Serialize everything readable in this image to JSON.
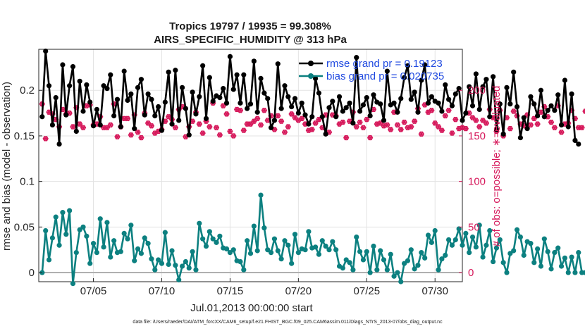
{
  "chart_data": {
    "type": "line",
    "title": "Tropics 19797 / 19935 = 99.308%",
    "subtitle": "AIRS_SPECIFIC_HUMIDITY @ 313 hPa",
    "xlabel": "Jul.01,2013 00:00:00 start",
    "ylabel": "rmse and bias (model - observation)",
    "ylabel_right": "# of obs: o=possible; ∗=evaluated",
    "footer": "data file: /Users/raeder/DAI/ATM_forcXX/CAM6_setup/f.e21.FHIST_BGC.f09_025.CAM6assim.011/Diags_NTrS_2013-07/obs_diag_output.nc",
    "x_range_days": [
      1.0,
      32.0
    ],
    "ylim": [
      -0.01,
      0.245
    ],
    "ylim_right": [
      -10,
      245
    ],
    "x_ticks": [
      {
        "day": 5,
        "label": "07/05"
      },
      {
        "day": 10,
        "label": "07/10"
      },
      {
        "day": 15,
        "label": "07/15"
      },
      {
        "day": 20,
        "label": "07/20"
      },
      {
        "day": 25,
        "label": "07/25"
      },
      {
        "day": 30,
        "label": "07/30"
      }
    ],
    "y_ticks": [
      {
        "value": 0,
        "label": "0"
      },
      {
        "value": 0.05,
        "label": "0.05"
      },
      {
        "value": 0.1,
        "label": "0.1"
      },
      {
        "value": 0.15,
        "label": "0.15"
      },
      {
        "value": 0.2,
        "label": "0.2"
      }
    ],
    "y_ticks_right": [
      {
        "value": 0,
        "label": "0"
      },
      {
        "value": 50,
        "label": "50"
      },
      {
        "value": 100,
        "label": "100"
      },
      {
        "value": 150,
        "label": "150"
      },
      {
        "value": 200,
        "label": "200"
      }
    ],
    "legend": [
      {
        "name": "rmse grand pr = 0.19123",
        "color": "#000000"
      },
      {
        "name": "bias grand pr = 0.020735",
        "color": "#008080"
      }
    ],
    "grid": true,
    "colors": {
      "rmse": "#000000",
      "bias": "#0c8080",
      "counts": "#d6195b",
      "zero_line": "#b0b0b0"
    },
    "series": [
      {
        "name": "rmse",
        "axis": "left",
        "x_start": 1.25,
        "x_step": 0.25,
        "values": [
          0.171,
          0.243,
          0.205,
          0.162,
          0.192,
          0.141,
          0.228,
          0.173,
          0.205,
          0.226,
          0.155,
          0.21,
          0.177,
          0.206,
          0.187,
          0.161,
          0.179,
          0.162,
          0.205,
          0.202,
          0.217,
          0.172,
          0.19,
          0.16,
          0.221,
          0.189,
          0.196,
          0.158,
          0.203,
          0.212,
          0.173,
          0.196,
          0.19,
          0.172,
          0.182,
          0.156,
          0.187,
          0.22,
          0.163,
          0.222,
          0.167,
          0.203,
          0.18,
          0.151,
          0.198,
          0.174,
          0.193,
          0.227,
          0.169,
          0.214,
          0.188,
          0.194,
          0.192,
          0.202,
          0.186,
          0.237,
          0.201,
          0.217,
          0.186,
          0.217,
          0.18,
          0.185,
          0.232,
          0.176,
          0.213,
          0.197,
          0.191,
          0.159,
          0.167,
          0.229,
          0.18,
          0.205,
          0.193,
          0.182,
          0.191,
          0.175,
          0.186,
          0.173,
          0.163,
          0.171,
          0.213,
          0.197,
          0.171,
          0.152,
          0.181,
          0.188,
          0.171,
          0.193,
          0.177,
          0.181,
          0.186,
          0.164,
          0.236,
          0.177,
          0.184,
          0.192,
          0.172,
          0.195,
          0.187,
          0.185,
          0.167,
          0.221,
          0.184,
          0.186,
          0.176,
          0.191,
          0.214,
          0.227,
          0.19,
          0.198,
          0.176,
          0.211,
          0.228,
          0.186,
          0.193,
          0.188,
          0.186,
          0.177,
          0.206,
          0.19,
          0.183,
          0.196,
          0.202,
          0.167,
          0.175,
          0.204,
          0.183,
          0.218,
          0.179,
          0.204,
          0.212,
          0.171,
          0.215,
          0.157,
          0.185,
          0.152,
          0.203,
          0.185,
          0.22,
          0.182,
          0.148,
          0.17,
          0.158,
          0.193,
          0.185,
          0.172,
          0.2,
          0.171,
          0.178,
          0.183,
          0.178,
          0.195,
          0.162,
          0.211,
          0.16,
          0.196,
          0.145,
          0.141
        ]
      },
      {
        "name": "bias",
        "axis": "left",
        "x_start": 1.25,
        "x_step": 0.25,
        "values": [
          0.0,
          0.046,
          0.014,
          0.038,
          0.061,
          0.03,
          0.066,
          0.042,
          0.068,
          -0.012,
          0.022,
          0.047,
          0.05,
          0.04,
          0.01,
          0.032,
          0.022,
          0.059,
          0.028,
          0.055,
          0.017,
          0.035,
          0.022,
          0.023,
          0.043,
          0.037,
          0.052,
          0.013,
          0.026,
          0.021,
          0.038,
          0.032,
          0.015,
          0.003,
          0.014,
          0.01,
          0.044,
          0.009,
          0.024,
          0.008,
          -0.008,
          0.007,
          0.012,
          0.005,
          0.023,
          0.003,
          0.054,
          0.037,
          0.029,
          0.045,
          0.037,
          0.033,
          0.04,
          0.027,
          0.026,
          0.022,
          0.025,
          0.013,
          0.012,
          0.003,
          0.035,
          0.021,
          0.051,
          0.024,
          0.085,
          0.049,
          0.025,
          0.022,
          0.037,
          0.024,
          0.015,
          0.035,
          0.03,
          0.01,
          0.042,
          0.022,
          0.026,
          0.025,
          0.045,
          0.027,
          0.028,
          0.02,
          0.035,
          0.029,
          0.025,
          0.034,
          0.025,
          0.007,
          0.005,
          0.014,
          0.011,
          0.003,
          0.039,
          0.023,
          0.014,
          0.023,
          0.0,
          0.029,
          0.003,
          0.024,
          0.014,
          0.003,
          0.02,
          -0.004,
          0.0,
          -0.01,
          0.01,
          0.013,
          0.025,
          0.004,
          0.008,
          0.022,
          0.016,
          0.041,
          0.033,
          0.046,
          0.003,
          0.015,
          0.019,
          0.036,
          0.03,
          0.036,
          0.048,
          0.03,
          0.043,
          0.022,
          0.039,
          0.028,
          0.052,
          0.017,
          0.03,
          0.046,
          0.012,
          0.027,
          0.036,
          0.011,
          0.0,
          0.021,
          0.024,
          0.047,
          0.039,
          0.019,
          0.034,
          0.032,
          0.011,
          0.026,
          0.007,
          0.037,
          0.023,
          0.004,
          0.022,
          0.027,
          0.007,
          0.016,
          0.0,
          0.017,
          0.0,
          0.022,
          0.0,
          0.0
        ]
      },
      {
        "name": "obs possible (o)",
        "axis": "right",
        "x_start": 1.25,
        "x_step": 0.25,
        "values": [
          185,
          147,
          176,
          174,
          168,
          160,
          179,
          174,
          175,
          160,
          181,
          163,
          159,
          183,
          184,
          162,
          163,
          171,
          159,
          159,
          162,
          185,
          149,
          160,
          169,
          169,
          151,
          173,
          154,
          148,
          175,
          164,
          161,
          153,
          155,
          157,
          166,
          171,
          168,
          159,
          179,
          182,
          149,
          160,
          166,
          176,
          163,
          153,
          166,
          160,
          186,
          159,
          151,
          183,
          174,
          155,
          150,
          179,
          178,
          156,
          163,
          163,
          166,
          169,
          162,
          178,
          167,
          172,
          157,
          172,
          166,
          154,
          160,
          174,
          170,
          167,
          169,
          163,
          156,
          157,
          164,
          168,
          159,
          173,
          154,
          173,
          172,
          163,
          165,
          148,
          166,
          176,
          160,
          165,
          159,
          168,
          148,
          179,
          163,
          164,
          161,
          162,
          157,
          176,
          162,
          157,
          165,
          159,
          160,
          166,
          180,
          152,
          184,
          176,
          178,
          164,
          160,
          156,
          172,
          178,
          153,
          168,
          158,
          159,
          158,
          175,
          170,
          167,
          160,
          167,
          164,
          179,
          170,
          155,
          178,
          150,
          170,
          158,
          177,
          172,
          163,
          161,
          173,
          162,
          169,
          163,
          176,
          182,
          171,
          165,
          159,
          183,
          154,
          163,
          164,
          178,
          169,
          159,
          159,
          177
        ]
      },
      {
        "name": "obs evaluated (∗)",
        "axis": "right",
        "x_start": 1.25,
        "x_step": 0.25,
        "values": [
          185,
          147,
          176,
          174,
          168,
          160,
          179,
          174,
          175,
          160,
          181,
          163,
          159,
          183,
          184,
          162,
          163,
          171,
          159,
          159,
          162,
          185,
          149,
          160,
          169,
          169,
          151,
          173,
          154,
          148,
          175,
          164,
          161,
          153,
          155,
          157,
          166,
          171,
          168,
          159,
          179,
          182,
          149,
          160,
          166,
          176,
          163,
          153,
          166,
          160,
          186,
          159,
          151,
          183,
          174,
          155,
          150,
          179,
          178,
          156,
          163,
          163,
          166,
          169,
          162,
          178,
          167,
          172,
          157,
          172,
          166,
          154,
          160,
          174,
          170,
          167,
          169,
          163,
          156,
          157,
          164,
          168,
          159,
          173,
          154,
          173,
          172,
          163,
          165,
          148,
          166,
          176,
          160,
          165,
          159,
          168,
          148,
          179,
          163,
          164,
          161,
          162,
          157,
          176,
          162,
          157,
          165,
          159,
          160,
          166,
          180,
          152,
          184,
          176,
          178,
          164,
          160,
          156,
          172,
          178,
          153,
          168,
          158,
          159,
          158,
          175,
          170,
          167,
          160,
          167,
          164,
          179,
          170,
          155,
          178,
          150,
          170,
          158,
          177,
          172,
          163,
          161,
          173,
          162,
          169,
          163,
          176,
          182,
          171,
          165,
          159,
          183,
          154,
          163,
          164,
          178,
          169,
          159,
          159,
          177
        ]
      }
    ]
  }
}
